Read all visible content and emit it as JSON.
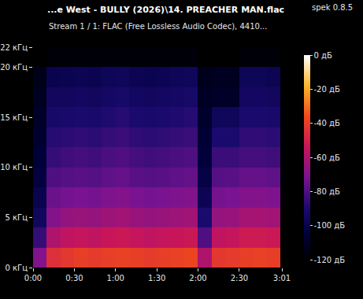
{
  "chart_data": {
    "type": "heatmap",
    "title": "...e West - BULLY (2026)\\14. PREACHER MAN.flac",
    "subtitle": "Stream 1 / 1: FLAC (Free Lossless Audio Codec), 4410...",
    "annotations": [
      {
        "text": "spek 0.8.5"
      }
    ],
    "x": [
      0,
      10,
      20,
      30,
      40,
      50,
      60,
      70,
      80,
      90,
      100,
      110,
      120,
      130,
      140,
      150,
      160,
      170,
      180
    ],
    "y": [
      0,
      2,
      4,
      6,
      8,
      10,
      12,
      14,
      16,
      18,
      20,
      22
    ],
    "z": [
      [
        -70,
        -45,
        -42,
        -40,
        -41,
        -40,
        -39,
        -40,
        -41,
        -40,
        -39,
        -38,
        -60,
        -42,
        -41,
        -40,
        -39,
        -40
      ],
      [
        -85,
        -60,
        -56,
        -55,
        -56,
        -54,
        -53,
        -55,
        -56,
        -55,
        -54,
        -53,
        -80,
        -56,
        -55,
        -52,
        -52,
        -53
      ],
      [
        -95,
        -70,
        -66,
        -65,
        -66,
        -64,
        -63,
        -65,
        -66,
        -65,
        -64,
        -63,
        -90,
        -66,
        -65,
        -62,
        -62,
        -63
      ],
      [
        -100,
        -75,
        -73,
        -72,
        -73,
        -71,
        -70,
        -72,
        -73,
        -72,
        -71,
        -70,
        -98,
        -73,
        -72,
        -70,
        -70,
        -71
      ],
      [
        -104,
        -80,
        -79,
        -78,
        -79,
        -77,
        -76,
        -78,
        -79,
        -78,
        -77,
        -76,
        -102,
        -79,
        -78,
        -76,
        -76,
        -77
      ],
      [
        -106,
        -85,
        -83,
        -82,
        -83,
        -81,
        -80,
        -82,
        -83,
        -82,
        -81,
        -80,
        -105,
        -84,
        -84,
        -82,
        -82,
        -83
      ],
      [
        -108,
        -88,
        -87,
        -86,
        -87,
        -85,
        -84,
        -86,
        -87,
        -86,
        -85,
        -84,
        -107,
        -90,
        -90,
        -86,
        -86,
        -87
      ],
      [
        -110,
        -92,
        -91,
        -90,
        -91,
        -89,
        -88,
        -90,
        -91,
        -90,
        -89,
        -88,
        -109,
        -96,
        -96,
        -90,
        -90,
        -91
      ],
      [
        -112,
        -95,
        -95,
        -94,
        -95,
        -93,
        -92,
        -94,
        -95,
        -94,
        -93,
        -92,
        -111,
        -110,
        -110,
        -94,
        -94,
        -95
      ],
      [
        -114,
        -100,
        -99,
        -98,
        -99,
        -97,
        -96,
        -98,
        -99,
        -98,
        -97,
        -96,
        -113,
        -112,
        -112,
        -97,
        -97,
        -98
      ],
      [
        -120,
        -118,
        -118,
        -118,
        -118,
        -118,
        -118,
        -118,
        -118,
        -118,
        -118,
        -118,
        -120,
        -120,
        -120,
        -118,
        -118,
        -118
      ]
    ],
    "xlim": [
      0,
      181
    ],
    "ylim": [
      0,
      22
    ],
    "xticks": [
      {
        "value": 0,
        "label": "0:00"
      },
      {
        "value": 30,
        "label": "0:30"
      },
      {
        "value": 60,
        "label": "1:00"
      },
      {
        "value": 90,
        "label": "1:30"
      },
      {
        "value": 120,
        "label": "2:00"
      },
      {
        "value": 150,
        "label": "2:30"
      },
      {
        "value": 181,
        "label": "3:01"
      }
    ],
    "yticks": [
      {
        "value": 0,
        "label": "0 кГц"
      },
      {
        "value": 5,
        "label": "5 кГц"
      },
      {
        "value": 10,
        "label": "10 кГц"
      },
      {
        "value": 15,
        "label": "15 кГц"
      },
      {
        "value": 20,
        "label": "20 кГц"
      },
      {
        "value": 22,
        "label": "22 кГц"
      }
    ],
    "colorbar": {
      "range": [
        -120,
        0
      ],
      "ticks": [
        {
          "value": 0,
          "label": "0 дБ"
        },
        {
          "value": -20,
          "label": "-20 дБ"
        },
        {
          "value": -40,
          "label": "-40 дБ"
        },
        {
          "value": -60,
          "label": "-60 дБ"
        },
        {
          "value": -80,
          "label": "-80 дБ"
        },
        {
          "value": -100,
          "label": "-100 дБ"
        },
        {
          "value": -120,
          "label": "-120 дБ"
        }
      ]
    },
    "grid": false
  }
}
